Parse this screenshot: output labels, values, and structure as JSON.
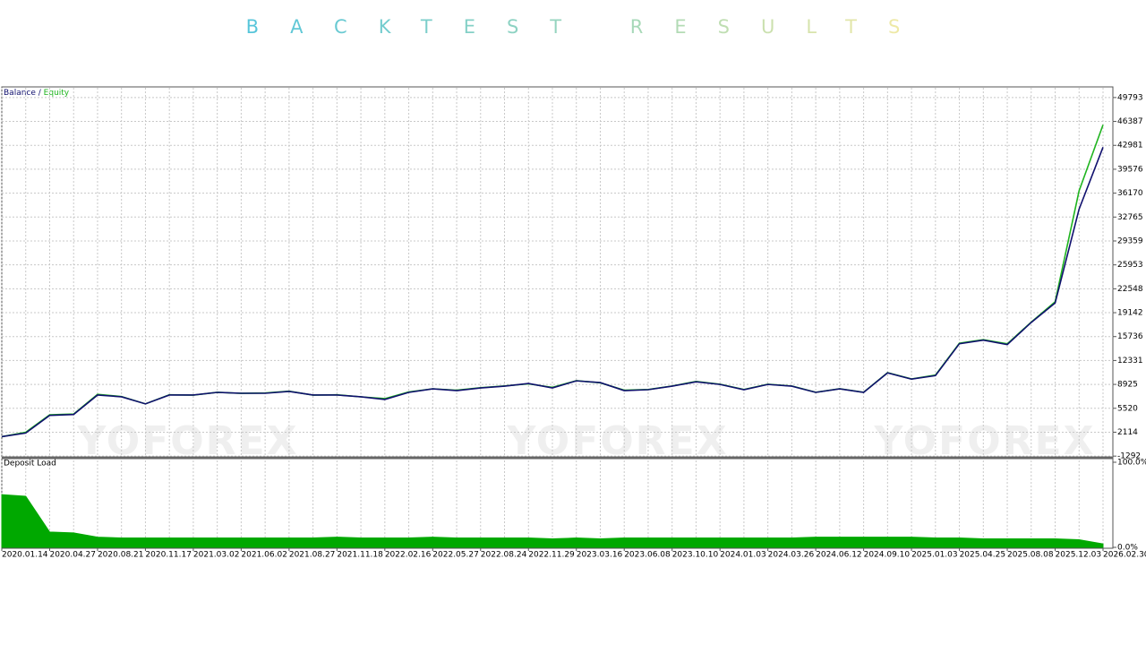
{
  "chart_data": {
    "type": "line",
    "title": "BACKTEST RESULTS",
    "watermark": "YOFOREX",
    "legend_separator": " / ",
    "categories": [
      "2020.01.14",
      null,
      "2020.04.27",
      null,
      "2020.08.21",
      null,
      "2020.11.17",
      null,
      "2021.03.02",
      null,
      "2021.06.02",
      null,
      "2021.08.27",
      null,
      "2021.11.18",
      null,
      "2022.02.16",
      null,
      "2022.05.27",
      null,
      "2022.08.24",
      null,
      "2022.11.29",
      null,
      "2023.03.16",
      null,
      "2023.06.08",
      null,
      "2023.10.10",
      null,
      "2024.01.03",
      null,
      "2024.03.26",
      null,
      "2024.06.12",
      null,
      "2024.09.10",
      null,
      "2025.01.03",
      null,
      "2025.04.25",
      null,
      "2025.08.08",
      null,
      "2025.12.03",
      null,
      "2026.02.30"
    ],
    "series": [
      {
        "name": "Balance",
        "color": "#10106e",
        "values": [
          1483,
          2000,
          4510,
          4640,
          7410,
          7160,
          6150,
          7410,
          7410,
          7790,
          7660,
          7660,
          7920,
          7410,
          7410,
          7160,
          6780,
          7790,
          8290,
          8040,
          8420,
          8670,
          9050,
          8420,
          9430,
          9180,
          8040,
          8170,
          8670,
          9300,
          8920,
          8170,
          8920,
          8670,
          7790,
          8290,
          7790,
          10560,
          9680,
          10180,
          14720,
          15230,
          14600,
          17750,
          20530,
          33890,
          42720
        ]
      },
      {
        "name": "Equity",
        "color": "#1fb41f",
        "values": [
          1483,
          2100,
          4600,
          4700,
          7500,
          7200,
          6150,
          7450,
          7400,
          7800,
          7650,
          7700,
          7950,
          7400,
          7450,
          7150,
          6900,
          7850,
          8300,
          8100,
          8450,
          8700,
          9000,
          8500,
          9450,
          9150,
          8100,
          8200,
          8700,
          9350,
          8950,
          8200,
          8950,
          8700,
          7800,
          8300,
          7800,
          10600,
          9700,
          10250,
          14800,
          15300,
          14700,
          17800,
          20700,
          36500,
          45900
        ]
      },
      {
        "name": "Deposit Load",
        "color": "#00a800",
        "type": "area",
        "axis": "y2",
        "values": [
          62,
          60,
          18,
          17,
          12,
          11,
          11,
          11,
          11,
          11,
          11,
          11,
          11,
          11,
          12,
          11,
          11,
          11,
          12,
          11,
          11,
          11,
          11,
          10,
          11,
          10,
          11,
          11,
          11,
          11,
          11,
          11,
          11,
          11,
          12,
          12,
          12,
          12,
          12,
          11,
          11,
          10,
          10,
          10,
          10,
          9,
          4
        ]
      }
    ],
    "ylim": [
      -1400,
      51180
    ],
    "yticks": [
      -1292,
      2114,
      5520,
      8925,
      12331,
      15736,
      19142,
      22548,
      25953,
      29359,
      32765,
      36170,
      39576,
      42981,
      46387,
      49793
    ],
    "y2lim": [
      0,
      100
    ],
    "y2ticks": [
      {
        "value": 0,
        "label": "0.0%"
      },
      {
        "value": 100,
        "label": "100.0%"
      }
    ],
    "grid": true
  }
}
